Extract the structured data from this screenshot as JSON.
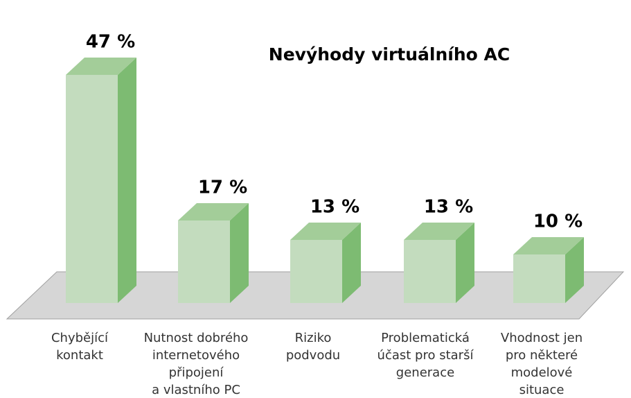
{
  "chart_data": {
    "type": "bar3d",
    "title": "Nevýhody virtuálního AC",
    "categories": [
      [
        "Chybějící",
        "kontakt"
      ],
      [
        "Nutnost dobrého",
        "internetového",
        "připojení",
        "a vlastního PC"
      ],
      [
        "Riziko",
        "podvodu"
      ],
      [
        "Problematická",
        "účast pro starší",
        "generace"
      ],
      [
        "Vhodnost jen",
        "pro některé",
        "modelové",
        "situace"
      ]
    ],
    "values": [
      47,
      17,
      13,
      13,
      10
    ],
    "value_labels": [
      "47 %",
      "17 %",
      "13 %",
      "13 %",
      "10 %"
    ],
    "colors": {
      "front": "#c3dcbe",
      "top": "#a3cd99",
      "side": "#7dbb72",
      "floor": "#d6d6d6"
    }
  }
}
